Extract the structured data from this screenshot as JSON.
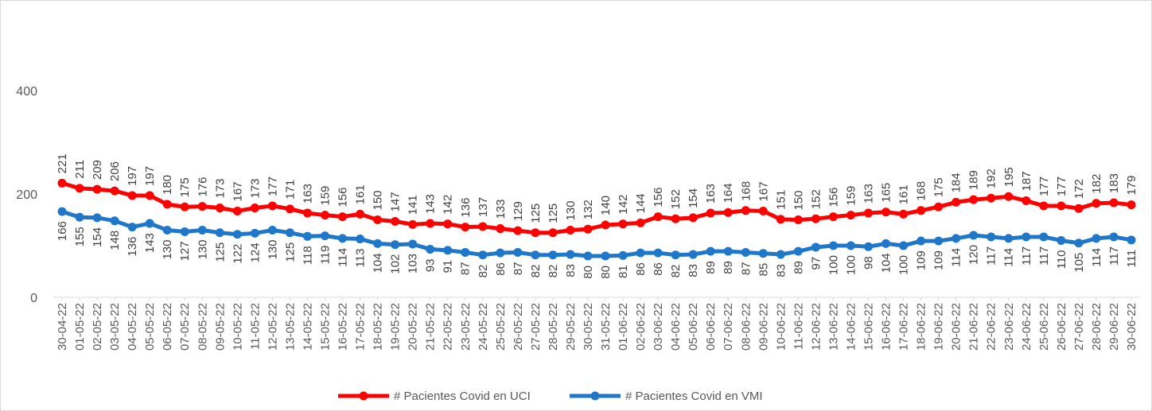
{
  "chart_data": {
    "type": "line",
    "title": "",
    "xlabel": "",
    "ylabel": "",
    "ylim": [
      0,
      500
    ],
    "yticks": [
      0,
      200,
      400
    ],
    "grid": false,
    "legend_position": "bottom",
    "categories": [
      "30-04-22",
      "01-05-22",
      "02-05-22",
      "03-05-22",
      "04-05-22",
      "05-05-22",
      "06-05-22",
      "07-05-22",
      "08-05-22",
      "09-05-22",
      "10-05-22",
      "11-05-22",
      "12-05-22",
      "13-05-22",
      "14-05-22",
      "15-05-22",
      "16-05-22",
      "17-05-22",
      "18-05-22",
      "19-05-22",
      "20-05-22",
      "21-05-22",
      "22-05-22",
      "23-05-22",
      "24-05-22",
      "25-05-22",
      "26-05-22",
      "27-05-22",
      "28-05-22",
      "29-05-22",
      "30-05-22",
      "31-05-22",
      "01-06-22",
      "02-06-22",
      "03-06-22",
      "04-06-22",
      "05-06-22",
      "06-06-22",
      "07-06-22",
      "08-06-22",
      "09-06-22",
      "10-06-22",
      "11-06-22",
      "12-06-22",
      "13-06-22",
      "14-06-22",
      "15-06-22",
      "16-06-22",
      "17-06-22",
      "18-06-22",
      "19-06-22",
      "20-06-22",
      "21-06-22",
      "22-06-22",
      "23-06-22",
      "24-06-22",
      "25-06-22",
      "26-06-22",
      "27-06-22",
      "28-06-22",
      "29-06-22",
      "30-06-22"
    ],
    "series": [
      {
        "name": "# Pacientes Covid en UCI",
        "color": "#ff0000",
        "values": [
          221,
          211,
          209,
          206,
          197,
          197,
          180,
          175,
          176,
          173,
          167,
          173,
          177,
          171,
          163,
          159,
          156,
          161,
          150,
          147,
          141,
          143,
          142,
          136,
          137,
          133,
          129,
          125,
          125,
          130,
          132,
          140,
          142,
          144,
          156,
          152,
          154,
          163,
          164,
          168,
          167,
          151,
          150,
          152,
          156,
          159,
          163,
          165,
          161,
          168,
          175,
          184,
          189,
          192,
          195,
          187,
          177,
          177,
          172,
          182,
          183,
          179
        ]
      },
      {
        "name": "# Pacientes Covid en VMI",
        "color": "#1f77c9",
        "values": [
          166,
          155,
          154,
          148,
          136,
          143,
          130,
          127,
          130,
          125,
          122,
          124,
          130,
          125,
          118,
          119,
          114,
          113,
          104,
          102,
          103,
          93,
          91,
          87,
          82,
          86,
          87,
          82,
          82,
          83,
          80,
          80,
          81,
          86,
          86,
          82,
          83,
          89,
          89,
          87,
          85,
          83,
          89,
          97,
          100,
          100,
          98,
          104,
          100,
          109,
          109,
          114,
          120,
          117,
          114,
          117,
          117,
          110,
          105,
          114,
          117,
          111
        ]
      }
    ]
  }
}
